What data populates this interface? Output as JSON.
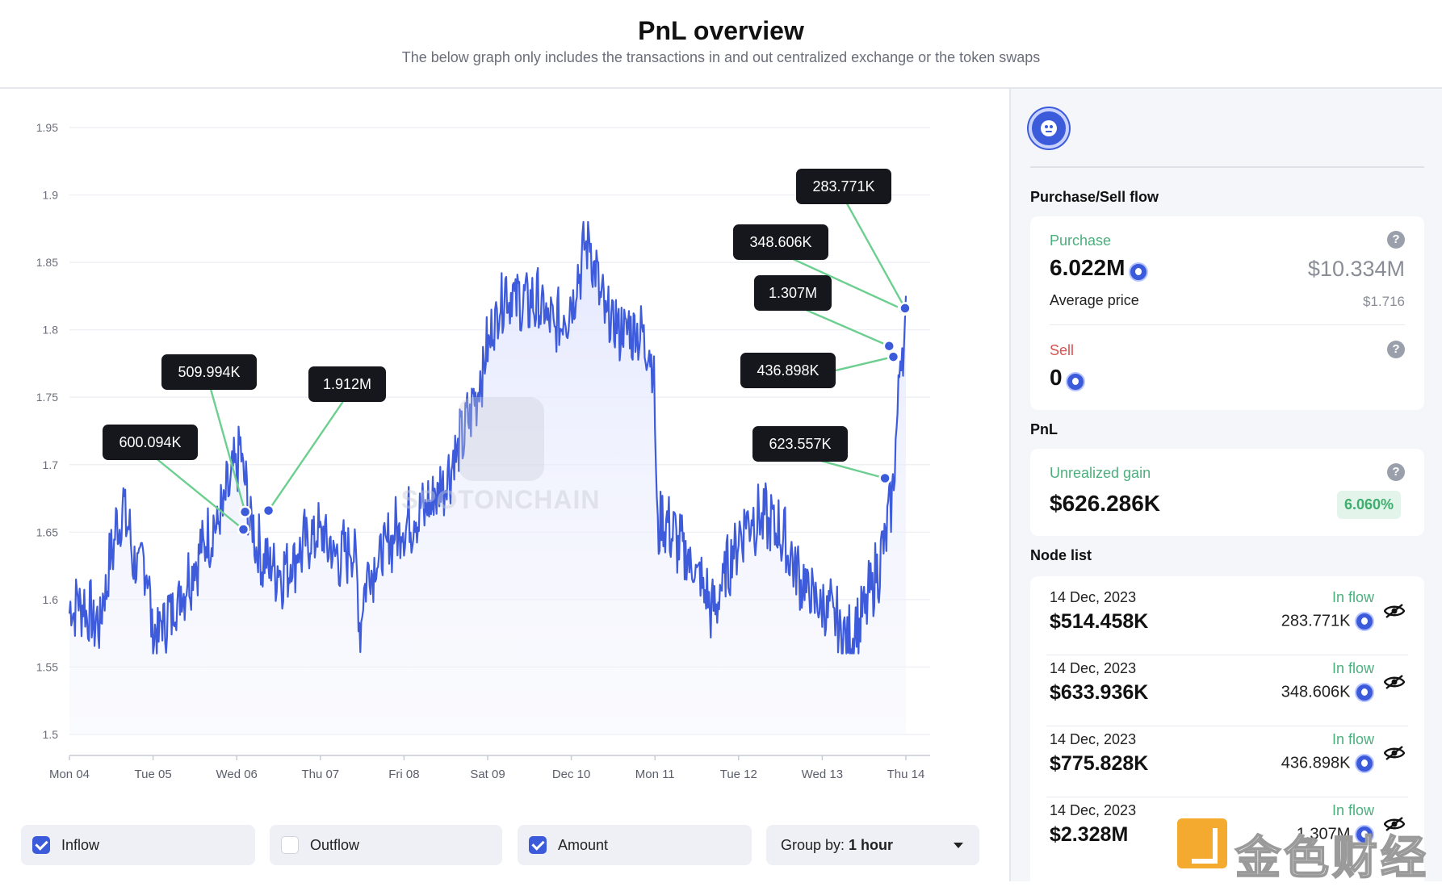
{
  "header": {
    "title": "PnL overview",
    "subtitle": "The below graph only includes the transactions in and out centralized exchange or the token swaps"
  },
  "chart_data": {
    "type": "area",
    "ylim": [
      1.5,
      1.95
    ],
    "yticks": [
      "1.95",
      "1.9",
      "1.85",
      "1.8",
      "1.75",
      "1.7",
      "1.65",
      "1.6",
      "1.55",
      "1.5"
    ],
    "xticks": [
      "Mon 04",
      "Tue 05",
      "Wed 06",
      "Thu 07",
      "Fri 08",
      "Sat 09",
      "Dec 10",
      "Mon 11",
      "Tue 12",
      "Wed 13",
      "Thu 14"
    ],
    "grid": true,
    "line_color": "#3d5bdb",
    "anchors": [
      [
        0.0,
        1.59
      ],
      [
        0.1,
        1.6
      ],
      [
        0.35,
        1.58
      ],
      [
        0.55,
        1.65
      ],
      [
        0.65,
        1.67
      ],
      [
        0.8,
        1.62
      ],
      [
        0.92,
        1.63
      ],
      [
        1.0,
        1.57
      ],
      [
        1.1,
        1.58
      ],
      [
        1.3,
        1.6
      ],
      [
        1.45,
        1.62
      ],
      [
        1.6,
        1.64
      ],
      [
        1.8,
        1.66
      ],
      [
        1.95,
        1.69
      ],
      [
        2.05,
        1.71
      ],
      [
        2.15,
        1.66
      ],
      [
        2.3,
        1.63
      ],
      [
        2.55,
        1.62
      ],
      [
        2.8,
        1.64
      ],
      [
        3.0,
        1.65
      ],
      [
        3.2,
        1.63
      ],
      [
        3.4,
        1.64
      ],
      [
        3.48,
        1.58
      ],
      [
        3.55,
        1.62
      ],
      [
        3.7,
        1.63
      ],
      [
        3.9,
        1.65
      ],
      [
        4.1,
        1.66
      ],
      [
        4.3,
        1.67
      ],
      [
        4.5,
        1.69
      ],
      [
        4.7,
        1.72
      ],
      [
        4.9,
        1.76
      ],
      [
        5.05,
        1.8
      ],
      [
        5.2,
        1.83
      ],
      [
        5.4,
        1.82
      ],
      [
        5.6,
        1.82
      ],
      [
        5.8,
        1.8
      ],
      [
        6.0,
        1.82
      ],
      [
        6.2,
        1.87
      ],
      [
        6.4,
        1.81
      ],
      [
        6.6,
        1.8
      ],
      [
        6.8,
        1.8
      ],
      [
        6.98,
        1.78
      ],
      [
        7.03,
        1.65
      ],
      [
        7.1,
        1.66
      ],
      [
        7.3,
        1.64
      ],
      [
        7.5,
        1.62
      ],
      [
        7.7,
        1.59
      ],
      [
        7.9,
        1.63
      ],
      [
        8.1,
        1.66
      ],
      [
        8.3,
        1.66
      ],
      [
        8.5,
        1.65
      ],
      [
        8.7,
        1.62
      ],
      [
        8.9,
        1.6
      ],
      [
        9.1,
        1.59
      ],
      [
        9.3,
        1.57
      ],
      [
        9.5,
        1.59
      ],
      [
        9.7,
        1.63
      ],
      [
        9.8,
        1.66
      ],
      [
        9.87,
        1.7
      ],
      [
        9.93,
        1.78
      ],
      [
        9.98,
        1.79
      ],
      [
        10.0,
        1.81
      ]
    ],
    "annotations": [
      {
        "label": "600.094K",
        "x": 2.08,
        "y": 1.652
      },
      {
        "label": "509.994K",
        "x": 2.1,
        "y": 1.665
      },
      {
        "label": "1.912M",
        "x": 2.38,
        "y": 1.666
      },
      {
        "label": "623.557K",
        "x": 9.75,
        "y": 1.69
      },
      {
        "label": "436.898K",
        "x": 9.85,
        "y": 1.78
      },
      {
        "label": "1.307M",
        "x": 9.8,
        "y": 1.788
      },
      {
        "label": "348.606K",
        "x": 9.97,
        "y": 1.815
      },
      {
        "label": "283.771K",
        "x": 9.99,
        "y": 1.816
      }
    ],
    "watermark": "SPOTONCHAIN"
  },
  "controls": {
    "inflow_label": "Inflow",
    "outflow_label": "Outflow",
    "amount_label": "Amount",
    "group_prefix": "Group by: ",
    "group_value": "1 hour"
  },
  "side": {
    "flow_title": "Purchase/Sell flow",
    "purchase_label": "Purchase",
    "purchase_amount": "6.022M",
    "purchase_usd": "$10.334M",
    "avg_price_label": "Average price",
    "avg_price": "$1.716",
    "sell_label": "Sell",
    "sell_amount": "0",
    "pnl_title": "PnL",
    "unrealized_label": "Unrealized gain",
    "unrealized_value": "$626.286K",
    "unrealized_pct": "6.060%",
    "node_title": "Node list",
    "nodes": [
      {
        "date": "14 Dec, 2023",
        "usd": "$514.458K",
        "type": "In flow",
        "amount": "283.771K"
      },
      {
        "date": "14 Dec, 2023",
        "usd": "$633.936K",
        "type": "In flow",
        "amount": "348.606K"
      },
      {
        "date": "14 Dec, 2023",
        "usd": "$775.828K",
        "type": "In flow",
        "amount": "436.898K"
      },
      {
        "date": "14 Dec, 2023",
        "usd": "$2.328M",
        "type": "In flow",
        "amount": "1.307M"
      }
    ]
  },
  "overlay": {
    "watermark_text": "金色财经"
  },
  "colors": {
    "accent": "#3b5bdb",
    "green": "#4caf7d",
    "red": "#d9534f",
    "connector": "#6ccf8f"
  }
}
